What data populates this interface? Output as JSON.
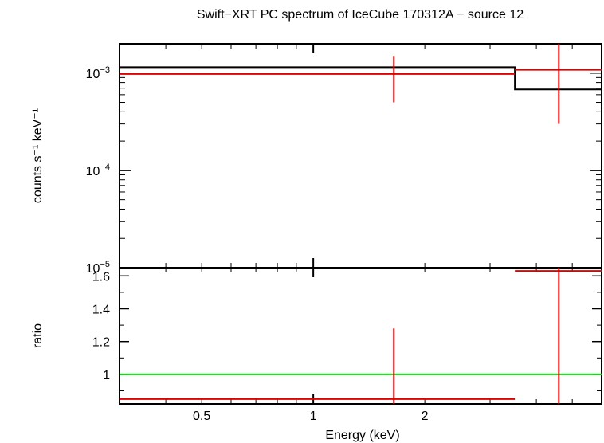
{
  "chart_data": [
    {
      "type": "scatter",
      "title": "Swift−XRT PC spectrum of IceCube 170312A − source 12",
      "ylabel": "counts s⁻¹ keV⁻¹",
      "xscale": "log",
      "yscale": "log",
      "xlim": [
        0.3,
        6.0
      ],
      "ylim": [
        1e-05,
        0.002
      ],
      "yticks": [
        {
          "value": 0.001,
          "base": "10",
          "exp": "−3"
        },
        {
          "value": 0.0001,
          "base": "10",
          "exp": "−4"
        },
        {
          "value": 1e-05,
          "base": "10",
          "exp": "−5"
        }
      ],
      "series": [
        {
          "role": "model",
          "color": "#000000",
          "style": "step",
          "steps": [
            {
              "x0": 0.3,
              "x1": 3.5,
              "y": 0.00115
            },
            {
              "x0": 3.5,
              "x1": 6.0,
              "y": 0.00068
            }
          ]
        },
        {
          "role": "data",
          "color": "#e00000",
          "points": [
            {
              "x0": 0.3,
              "x1": 0.3,
              "y": 0.00098,
              "xerr_only": true
            },
            {
              "x": 1.65,
              "x0": 0.3,
              "x1": 3.5,
              "y": 0.00098,
              "ylo": 0.0005,
              "yhi": 0.0015,
              "draw_xbar": false
            },
            {
              "x": 4.6,
              "x0": 3.5,
              "x1": 6.0,
              "y": 0.00108,
              "ylo": 0.0003,
              "yhi": 0.002
            }
          ]
        }
      ]
    },
    {
      "type": "scatter",
      "xlabel": "Energy (keV)",
      "ylabel": "ratio",
      "xscale": "log",
      "xlim": [
        0.3,
        6.0
      ],
      "ylim": [
        0.82,
        1.65
      ],
      "xticks": [
        {
          "value": 0.5,
          "label": "0.5"
        },
        {
          "value": 1,
          "label": "1"
        },
        {
          "value": 2,
          "label": "2"
        }
      ],
      "yticks": [
        {
          "value": 1,
          "label": "1"
        },
        {
          "value": 1.2,
          "label": "1.2"
        },
        {
          "value": 1.4,
          "label": "1.4"
        },
        {
          "value": 1.6,
          "label": "1.6"
        }
      ],
      "reference_line": {
        "y": 1,
        "color": "#00dd00"
      },
      "series": [
        {
          "role": "data",
          "color": "#e00000",
          "points": [
            {
              "x": 1.65,
              "x0": 0.3,
              "x1": 3.5,
              "y": 0.85,
              "ylo": 0.82,
              "yhi": 1.28
            },
            {
              "x": 4.6,
              "x0": 3.5,
              "x1": 6.0,
              "y": 1.63,
              "ylo": 0.82,
              "yhi": 1.65
            }
          ]
        }
      ]
    }
  ]
}
